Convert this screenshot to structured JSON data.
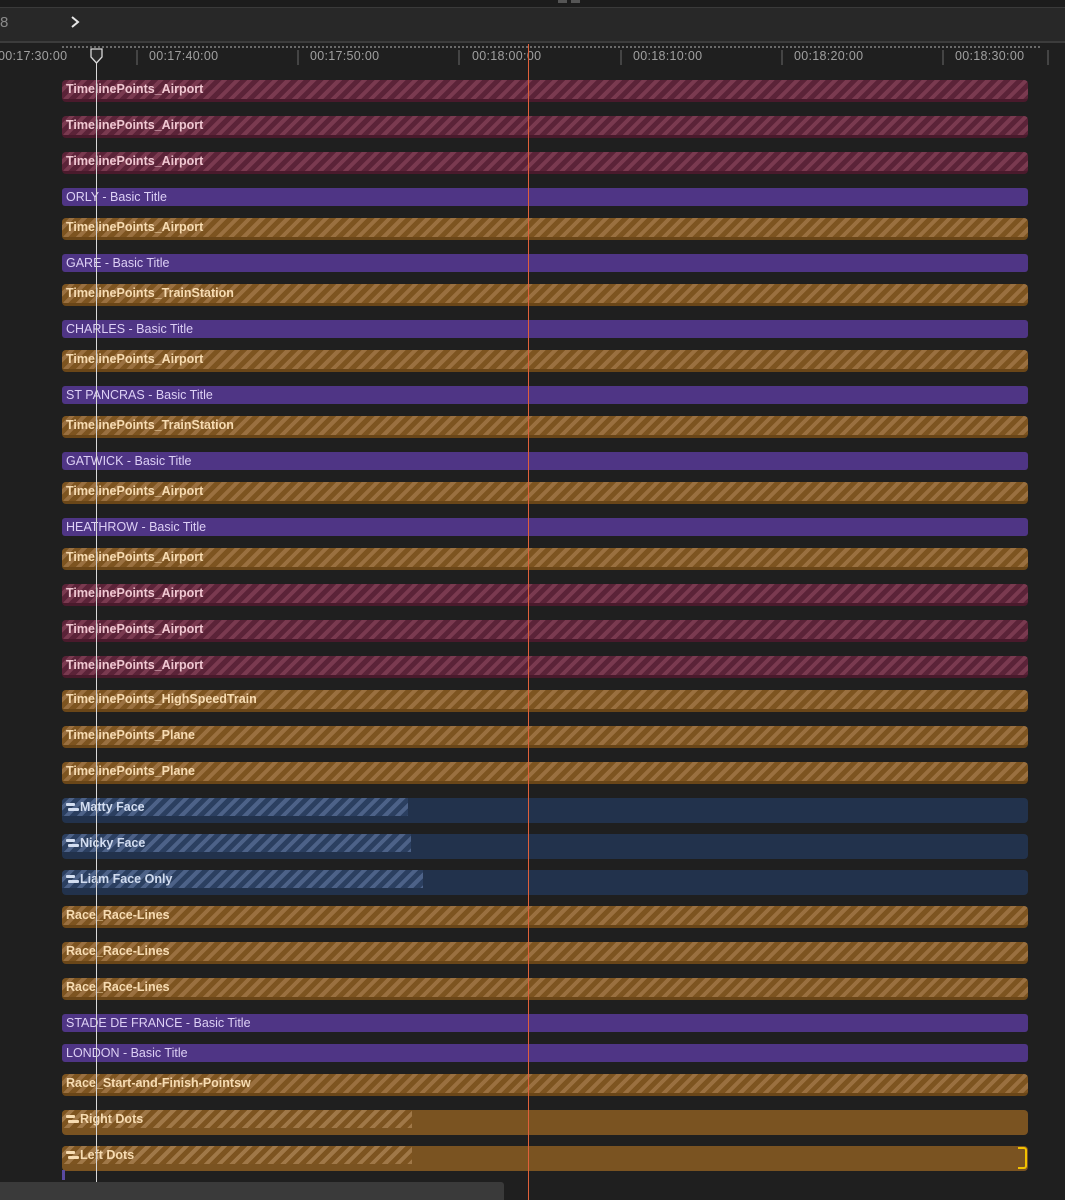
{
  "header": {
    "left_char": "8",
    "chevron_icon": "chevron-right-icon"
  },
  "ruler": {
    "ticks": [
      "00:17:30:00",
      "00:17:40:00",
      "00:17:50:00",
      "00:18:00:00",
      "00:18:10:00",
      "00:18:20:00",
      "00:18:30:00"
    ]
  },
  "colors": {
    "airport_red": "#5b2338",
    "orange": "#7d5420",
    "basic_title": "#4f3585",
    "compound_blue": "#22324c",
    "playhead": "#d8d8d8",
    "skimmer": "#e0603a",
    "selection": "#f2c200"
  },
  "clips": [
    {
      "label": "TimelinePoints_Airport",
      "kind": "airport-red"
    },
    {
      "label": "TimelinePoints_Airport",
      "kind": "airport-red"
    },
    {
      "label": "TimelinePoints_Airport",
      "kind": "airport-red"
    },
    {
      "label": "ORLY - Basic Title",
      "kind": "title"
    },
    {
      "label": "TimelinePoints_Airport",
      "kind": "orange"
    },
    {
      "label": "GARE  - Basic Title",
      "kind": "title"
    },
    {
      "label": "TimelinePoints_TrainStation",
      "kind": "orange"
    },
    {
      "label": "CHARLES  - Basic Title",
      "kind": "title"
    },
    {
      "label": "TimelinePoints_Airport",
      "kind": "orange"
    },
    {
      "label": "ST PANCRAS - Basic Title",
      "kind": "title"
    },
    {
      "label": "TimelinePoints_TrainStation",
      "kind": "orange"
    },
    {
      "label": "GATWICK - Basic Title",
      "kind": "title"
    },
    {
      "label": "TimelinePoints_Airport",
      "kind": "orange"
    },
    {
      "label": "HEATHROW - Basic Title",
      "kind": "title"
    },
    {
      "label": "TimelinePoints_Airport",
      "kind": "orange"
    },
    {
      "label": "TimelinePoints_Airport",
      "kind": "airport-red"
    },
    {
      "label": "TimelinePoints_Airport",
      "kind": "airport-red"
    },
    {
      "label": "TimelinePoints_Airport",
      "kind": "airport-red"
    },
    {
      "label": "TimelinePoints_HighSpeedTrain",
      "kind": "orange"
    },
    {
      "label": "TimelinePoints_Plane",
      "kind": "orange"
    },
    {
      "label": "TimelinePoints_Plane",
      "kind": "orange"
    },
    {
      "label": "Matty Face",
      "kind": "blue",
      "icon": "compound-clip-icon"
    },
    {
      "label": "Nicky Face",
      "kind": "blue",
      "icon": "compound-clip-icon"
    },
    {
      "label": "Liam Face Only",
      "kind": "blue",
      "icon": "compound-clip-icon"
    },
    {
      "label": "Race_Race-Lines",
      "kind": "orange"
    },
    {
      "label": "Race_Race-Lines",
      "kind": "orange"
    },
    {
      "label": "Race_Race-Lines",
      "kind": "orange"
    },
    {
      "label": "STADE DE FRANCE - Basic Title",
      "kind": "title"
    },
    {
      "label": "LONDON  - Basic Title",
      "kind": "title"
    },
    {
      "label": "Race_Start-and-Finish-Pointsw",
      "kind": "orange"
    },
    {
      "label": "Right Dots",
      "kind": "orange-solid",
      "icon": "compound-clip-icon"
    },
    {
      "label": "Left Dots",
      "kind": "orange-solid",
      "icon": "compound-clip-icon"
    }
  ]
}
